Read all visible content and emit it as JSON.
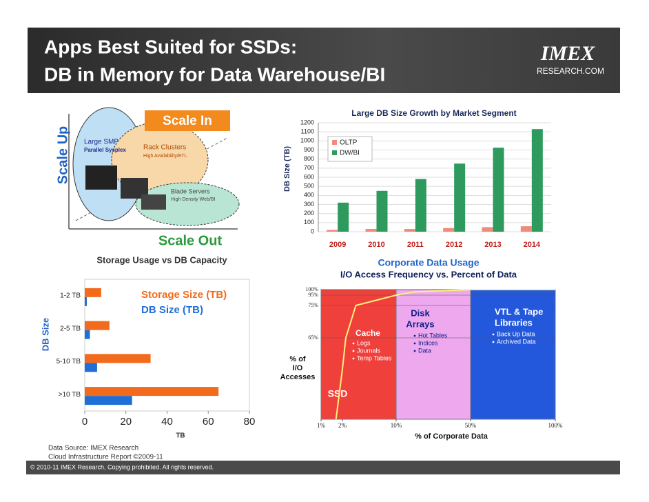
{
  "header": {
    "title_lines": [
      "Apps Best Suited for SSDs:",
      "DB in Memory for Data Warehouse/BI"
    ],
    "logo": "IMEX",
    "logo_subtitle": "RESEARCH.COM"
  },
  "diagram": {
    "scale_up": "Scale Up",
    "scale_in": "Scale In",
    "scale_out": "Scale Out",
    "nodes": [
      {
        "label": "Large SMP",
        "sublabel": "Parallel Sysplex"
      },
      {
        "label": "Rack Clusters",
        "sublabel": "High Availability/ETL"
      },
      {
        "label": "Blade Servers",
        "sublabel": "High Density Web/BI"
      }
    ]
  },
  "chart_data": [
    {
      "type": "bar",
      "title": "Large DB Size Growth by Market Segment",
      "ylabel": "DB Size (TB)",
      "categories": [
        "2009",
        "2010",
        "2011",
        "2012",
        "2013",
        "2014"
      ],
      "series": [
        {
          "name": "OLTP",
          "color": "#f08a7a",
          "values": [
            20,
            30,
            30,
            40,
            50,
            60
          ]
        },
        {
          "name": "DW/BI",
          "color": "#2e9a5e",
          "values": [
            320,
            450,
            580,
            750,
            925,
            1130
          ]
        }
      ],
      "ylim": [
        0,
        1200
      ],
      "yticks": [
        0,
        100,
        200,
        300,
        400,
        500,
        600,
        700,
        800,
        900,
        1000,
        1100,
        1200
      ],
      "grid": true
    },
    {
      "type": "hbar",
      "title": "Storage Usage vs DB Capacity",
      "xlabel": "TB",
      "ylabel": "DB Size",
      "categories": [
        "1-2 TB",
        "2-5 TB",
        "5-10 TB",
        ">10 TB"
      ],
      "series": [
        {
          "name": "DB Size (TB)",
          "color": "#1f6fd6",
          "values": [
            1,
            2.5,
            6,
            23
          ]
        },
        {
          "name": "Storage Size (TB)",
          "color": "#f26b1d",
          "values": [
            8,
            12,
            32,
            65
          ]
        }
      ],
      "xlim": [
        0,
        80
      ],
      "xticks": [
        0,
        20,
        40,
        60,
        80
      ]
    },
    {
      "type": "line",
      "title": "Corporate Data Usage",
      "subtitle": "I/O Access Frequency vs. Percent of Data",
      "xlabel": "% of Corporate Data",
      "ylabel": [
        "% of",
        "I/O",
        "Accesses"
      ],
      "x": [
        1.7,
        2,
        2.5,
        4,
        10,
        20,
        50,
        100
      ],
      "values": [
        0,
        40,
        65,
        75,
        95,
        98,
        100,
        100
      ],
      "color": "#fff27a",
      "xlim": [
        1,
        100
      ],
      "ylim": [
        0,
        100
      ],
      "xticks": [
        {
          "value": 1,
          "label": "1%"
        },
        {
          "value": 2,
          "label": "2%"
        },
        {
          "value": 10,
          "label": "10%"
        },
        {
          "value": 50,
          "label": "50%"
        },
        {
          "value": 100,
          "label": "100%"
        }
      ],
      "yticks": [
        {
          "value": 65,
          "label": "65%"
        },
        {
          "value": 75,
          "label": "75%"
        },
        {
          "value": 95,
          "label": "95%"
        },
        {
          "value": 100,
          "label": "100%"
        }
      ],
      "regions": [
        {
          "label": [
            "SSD"
          ],
          "from": 1,
          "to": 10,
          "color": "#f0403c",
          "items": []
        },
        {
          "label": [
            "Disk",
            "Arrays"
          ],
          "from": 10,
          "to": 50,
          "color": "#eea8ee",
          "items": [
            "Hot Tables",
            "Indices",
            "Data"
          ]
        },
        {
          "label": [
            "VTL & Tape",
            "Libraries"
          ],
          "from": 50,
          "to": 100,
          "color": "#2358dc",
          "items": [
            "Back Up Data",
            "Archived Data"
          ]
        }
      ],
      "annotations": [
        {
          "label": "Cache",
          "items": [
            "Logs",
            "Journals",
            "Temp Tables"
          ]
        }
      ]
    }
  ],
  "footer": {
    "source_lines": [
      "Data Source: IMEX Research",
      "Cloud Infrastructure Report ©2009-11"
    ],
    "copyright": "© 2010-11  IMEX Research, Copying prohibited. All rights reserved."
  }
}
